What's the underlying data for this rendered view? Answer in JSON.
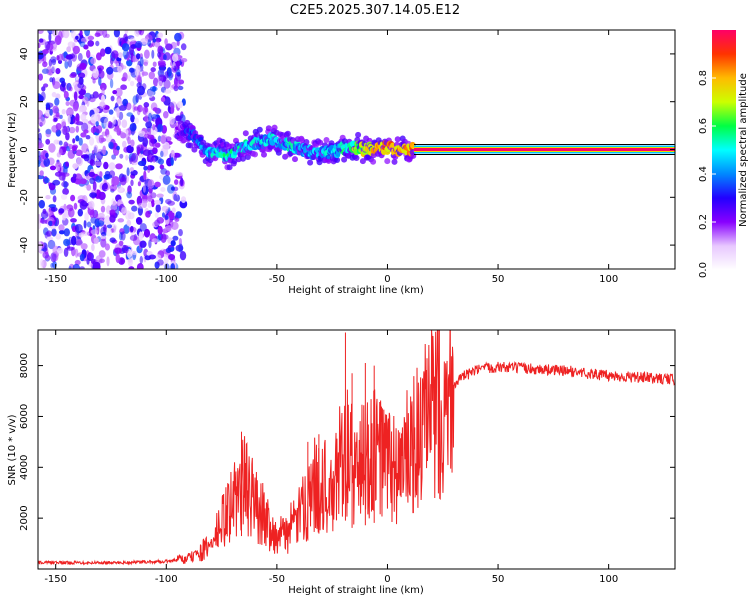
{
  "title": "C2E5.2025.307.14.05.E12",
  "chart_data": [
    {
      "type": "heatmap",
      "name": "spectrogram",
      "xlabel": "Height of straight line (km)",
      "ylabel": "Frequency (Hz)",
      "xlim": [
        -158,
        130
      ],
      "ylim": [
        -50,
        50
      ],
      "xticks": [
        -150,
        -100,
        -50,
        0,
        50,
        100
      ],
      "yticks": [
        -40,
        -20,
        0,
        20,
        40
      ],
      "colorbar": {
        "label": "Normalized spectral amplitude",
        "range": [
          0,
          1
        ],
        "ticks": [
          0.0,
          0.2,
          0.4,
          0.6,
          0.8
        ],
        "tick_labels": [
          "0.0",
          "0.2",
          "0.4",
          "0.6",
          "0.8"
        ],
        "colors": [
          "#ffffff",
          "#e8c8ff",
          "#8800ff",
          "#2200ff",
          "#0088ff",
          "#00ffff",
          "#00ff44",
          "#ccff00",
          "#ffbb00",
          "#ff3300",
          "#ff0066"
        ]
      },
      "features": {
        "noise_region_x": [
          -158,
          -92
        ],
        "noise_amplitude": 0.3,
        "signal_track": {
          "x": [
            -95,
            -88,
            -80,
            -72,
            -65,
            -58,
            -52,
            -45,
            -38,
            -32,
            -25,
            -18,
            -10,
            -3,
            5,
            12
          ],
          "freq": [
            9,
            6,
            -1,
            -2,
            1,
            3,
            4,
            2,
            0,
            -2,
            -1,
            1,
            0,
            1,
            0,
            0
          ],
          "amplitude": [
            0.2,
            0.3,
            0.45,
            0.5,
            0.5,
            0.45,
            0.45,
            0.5,
            0.45,
            0.4,
            0.45,
            0.55,
            0.7,
            0.8,
            0.8,
            0.8
          ]
        },
        "carrier_line": {
          "x_start": 12,
          "x_end": 130,
          "freq": 0,
          "amplitude": 1.0
        }
      }
    },
    {
      "type": "line",
      "name": "snr",
      "xlabel": "Height of straight line (km)",
      "ylabel": "SNR (10 * v/v)",
      "xlim": [
        -158,
        130
      ],
      "ylim": [
        0,
        9400
      ],
      "xticks": [
        -150,
        -100,
        -50,
        0,
        50,
        100
      ],
      "yticks": [
        2000,
        4000,
        6000,
        8000
      ],
      "color": "#ee2222",
      "series": [
        {
          "name": "SNR",
          "x": [
            -158,
            -140,
            -120,
            -100,
            -90,
            -80,
            -75,
            -70,
            -65,
            -60,
            -55,
            -50,
            -45,
            -40,
            -35,
            -30,
            -25,
            -20,
            -15,
            -10,
            -5,
            0,
            5,
            10,
            15,
            20,
            25,
            30,
            35,
            40,
            45,
            50,
            60,
            70,
            80,
            90,
            100,
            110,
            120,
            130
          ],
          "y": [
            250,
            250,
            250,
            300,
            400,
            900,
            1800,
            2600,
            3400,
            2600,
            2000,
            1200,
            1500,
            2000,
            3000,
            3600,
            2600,
            5000,
            3800,
            4300,
            4600,
            4200,
            3800,
            4600,
            5200,
            6000,
            6800,
            7300,
            7600,
            7800,
            7900,
            7950,
            7900,
            7850,
            7800,
            7700,
            7600,
            7550,
            7500,
            7450
          ]
        }
      ],
      "spikes": [
        {
          "x": -66,
          "y": 5400
        },
        {
          "x": -36,
          "y": 5000
        },
        {
          "x": -31,
          "y": 5300
        },
        {
          "x": -19,
          "y": 9300
        },
        {
          "x": -16,
          "y": 7700
        },
        {
          "x": -10,
          "y": 8100
        },
        {
          "x": -6,
          "y": 8000
        }
      ],
      "noise_amplitude_y": 220
    }
  ]
}
